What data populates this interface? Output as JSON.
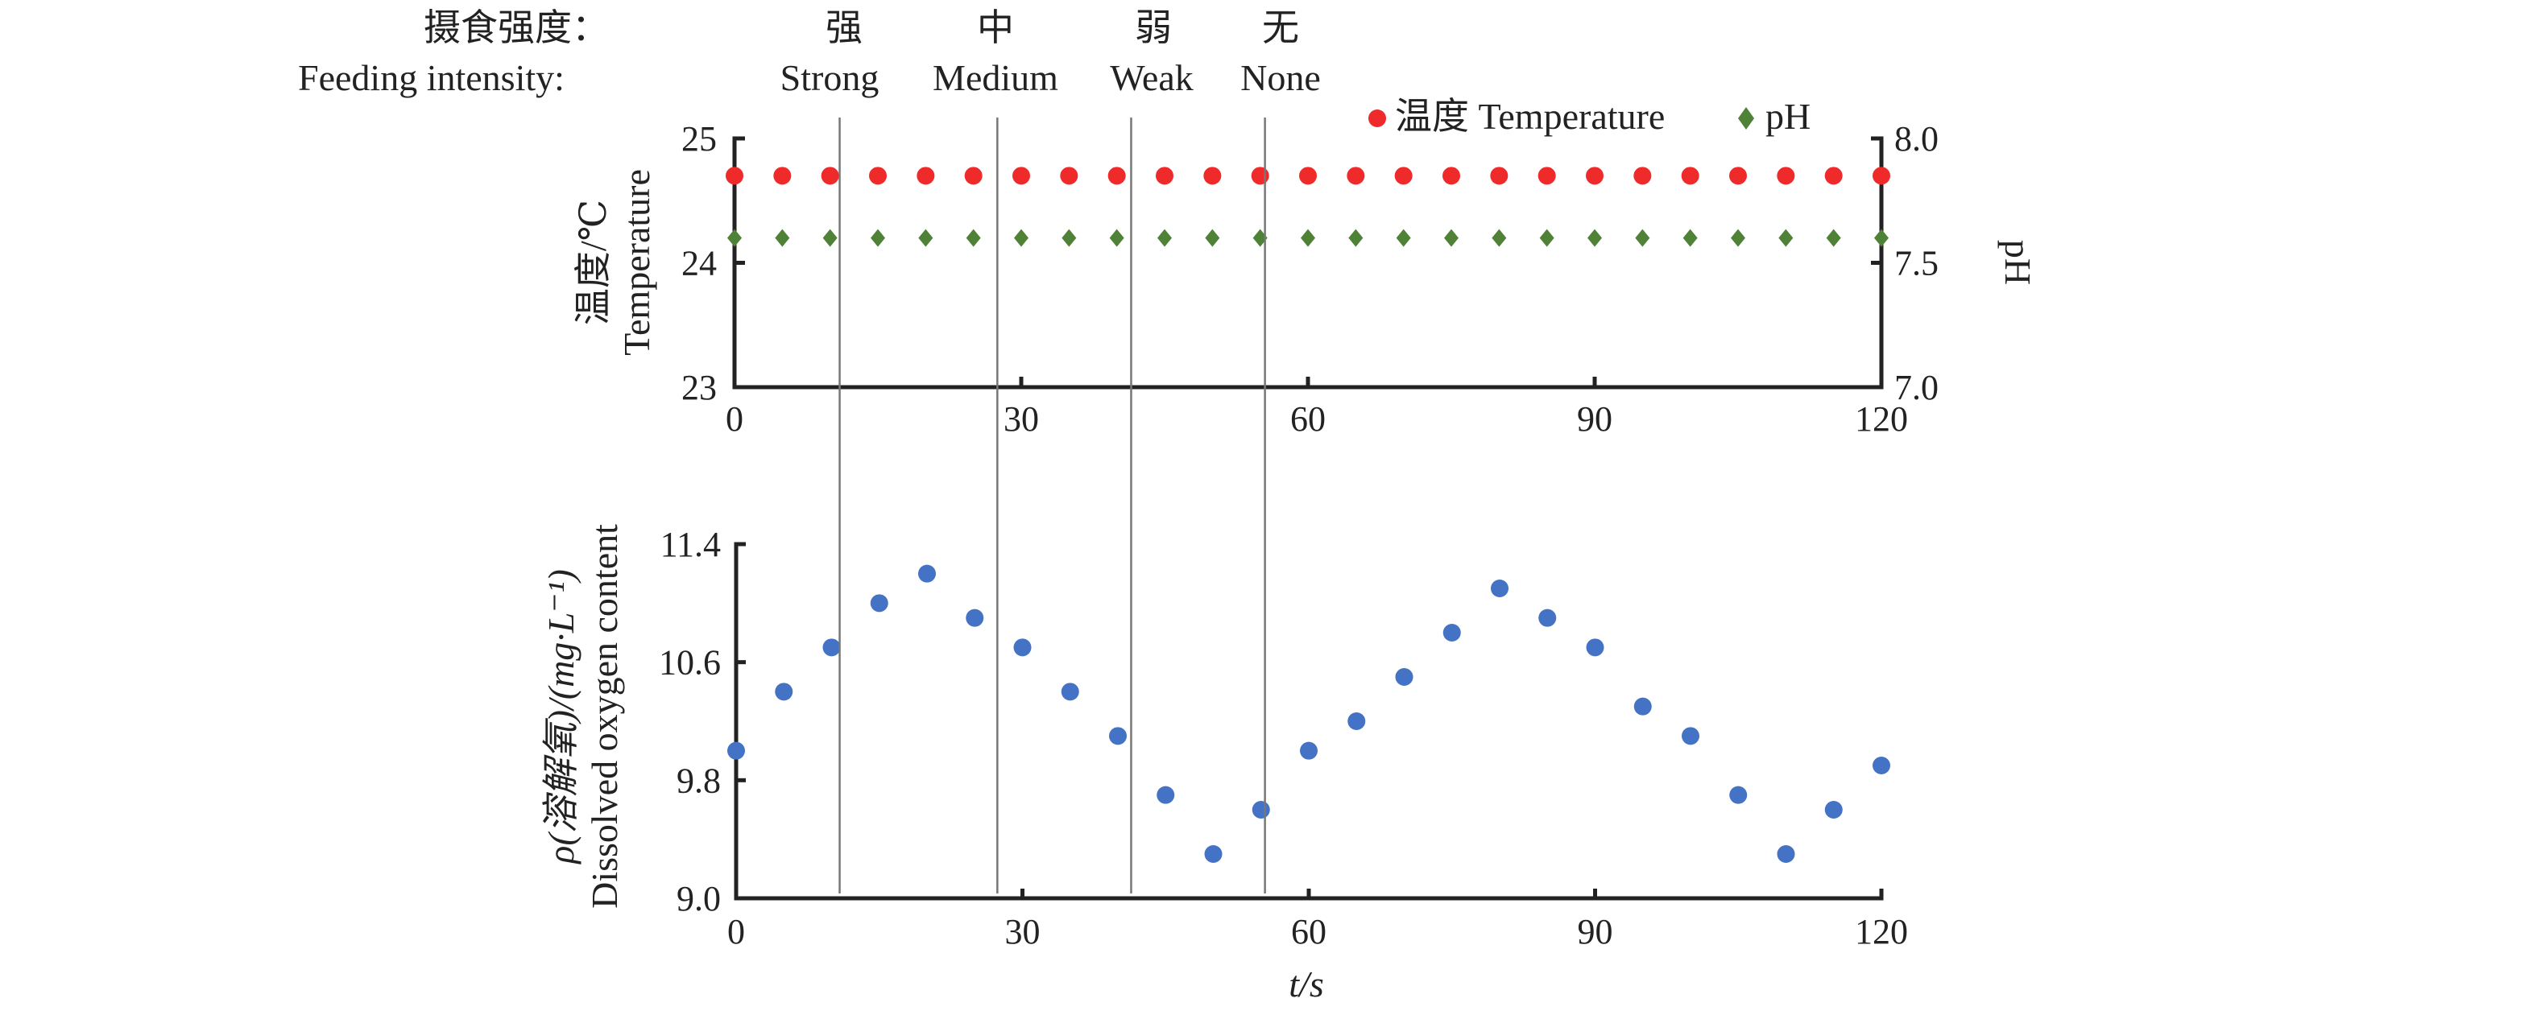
{
  "header": {
    "label_cn": "摄食强度：",
    "label_en": "Feeding intensity:",
    "levels": [
      {
        "cn": "强",
        "en": "Strong",
        "boundary_t": 11
      },
      {
        "cn": "中",
        "en": "Medium",
        "boundary_t": 27.5
      },
      {
        "cn": "弱",
        "en": "Weak",
        "boundary_t": 41.5
      },
      {
        "cn": "无",
        "en": "None",
        "boundary_t": 55.5
      }
    ]
  },
  "chart_data": [
    {
      "type": "scatter",
      "title": "",
      "ylabel_cn": "温度/℃",
      "ylabel_en": "Temperature",
      "y2label": "pH",
      "ylim": [
        23,
        25
      ],
      "y2lim": [
        7.0,
        8.0
      ],
      "xlim": [
        0,
        120
      ],
      "xticks": [
        "0",
        "30",
        "60",
        "90",
        "120"
      ],
      "yticks": [
        "23",
        "24",
        "25"
      ],
      "y2ticks": [
        "7.0",
        "7.5",
        "8.0"
      ],
      "legend_position": "top-right",
      "x": [
        0,
        5,
        10,
        15,
        20,
        25,
        30,
        35,
        40,
        45,
        50,
        55,
        60,
        65,
        70,
        75,
        80,
        85,
        90,
        95,
        100,
        105,
        110,
        115,
        120
      ],
      "series": [
        {
          "name": "温度 Temperature",
          "axis": "left",
          "color": "#ee2a2a",
          "marker": "circle",
          "values": [
            24.7,
            24.7,
            24.7,
            24.7,
            24.7,
            24.7,
            24.7,
            24.7,
            24.7,
            24.7,
            24.7,
            24.7,
            24.7,
            24.7,
            24.7,
            24.7,
            24.7,
            24.7,
            24.7,
            24.7,
            24.7,
            24.7,
            24.7,
            24.7,
            24.7
          ]
        },
        {
          "name": "pH",
          "axis": "right",
          "color": "#4f8136",
          "marker": "diamond",
          "values": [
            7.6,
            7.6,
            7.6,
            7.6,
            7.6,
            7.6,
            7.6,
            7.6,
            7.6,
            7.6,
            7.6,
            7.6,
            7.6,
            7.6,
            7.6,
            7.6,
            7.6,
            7.6,
            7.6,
            7.6,
            7.6,
            7.6,
            7.6,
            7.6,
            7.6
          ]
        }
      ]
    },
    {
      "type": "scatter",
      "title": "",
      "xlabel": "t/s",
      "ylabel_cn": "ρ(溶解氧)/(mg·L⁻¹)",
      "ylabel_en": "Dissolved oxygen content",
      "ylim": [
        9.0,
        11.4
      ],
      "xlim": [
        0,
        120
      ],
      "xticks": [
        "0",
        "30",
        "60",
        "90",
        "120"
      ],
      "yticks": [
        "9.0",
        "9.8",
        "10.6",
        "11.4"
      ],
      "x": [
        0,
        5,
        10,
        15,
        20,
        25,
        30,
        35,
        40,
        45,
        50,
        55,
        60,
        65,
        70,
        75,
        80,
        85,
        90,
        95,
        100,
        105,
        110,
        115,
        120
      ],
      "series": [
        {
          "name": "Dissolved oxygen",
          "color": "#4472c4",
          "marker": "circle",
          "values": [
            10.0,
            10.4,
            10.7,
            11.0,
            11.2,
            10.9,
            10.7,
            10.4,
            10.1,
            9.7,
            9.3,
            9.6,
            10.0,
            10.2,
            10.5,
            10.8,
            11.1,
            10.9,
            10.7,
            10.3,
            10.1,
            9.7,
            9.3,
            9.6,
            9.9
          ]
        }
      ]
    }
  ]
}
